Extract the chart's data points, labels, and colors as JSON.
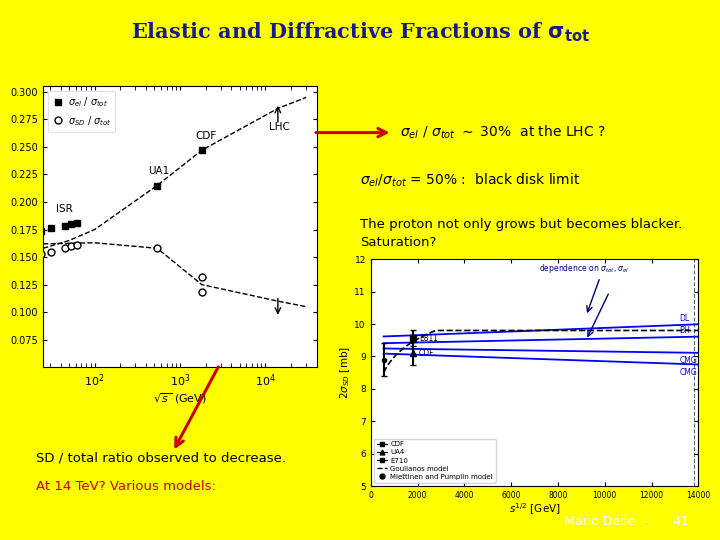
{
  "bg_color": "#FFFF00",
  "footer_bg": "#000000",
  "footer_text": "Mario Deile  –      41",
  "arrow1_color": "#CC0000",
  "isr_sqrts": [
    23.5,
    30.7,
    44.7,
    52.8,
    62.5
  ],
  "isr_sel": [
    0.174,
    0.176,
    0.178,
    0.18,
    0.181
  ],
  "isr_ssd": [
    0.153,
    0.155,
    0.158,
    0.16,
    0.161
  ],
  "ua1_sel": 0.215,
  "ua1_sqrts": 540,
  "ua4_ssd": 0.158,
  "ua4_sqrts": 540,
  "cdf_sel": 0.247,
  "cdf_ssd1": 0.132,
  "cdf_ssd2": 0.118,
  "cdf_sqrts": 1800,
  "lhc_sqrts": 14000,
  "lhc_sel_arrow_from": 0.27,
  "lhc_sel_arrow_to": 0.29,
  "lhc_ssd_arrow_from": 0.115,
  "lhc_ssd_arrow_to": 0.095
}
